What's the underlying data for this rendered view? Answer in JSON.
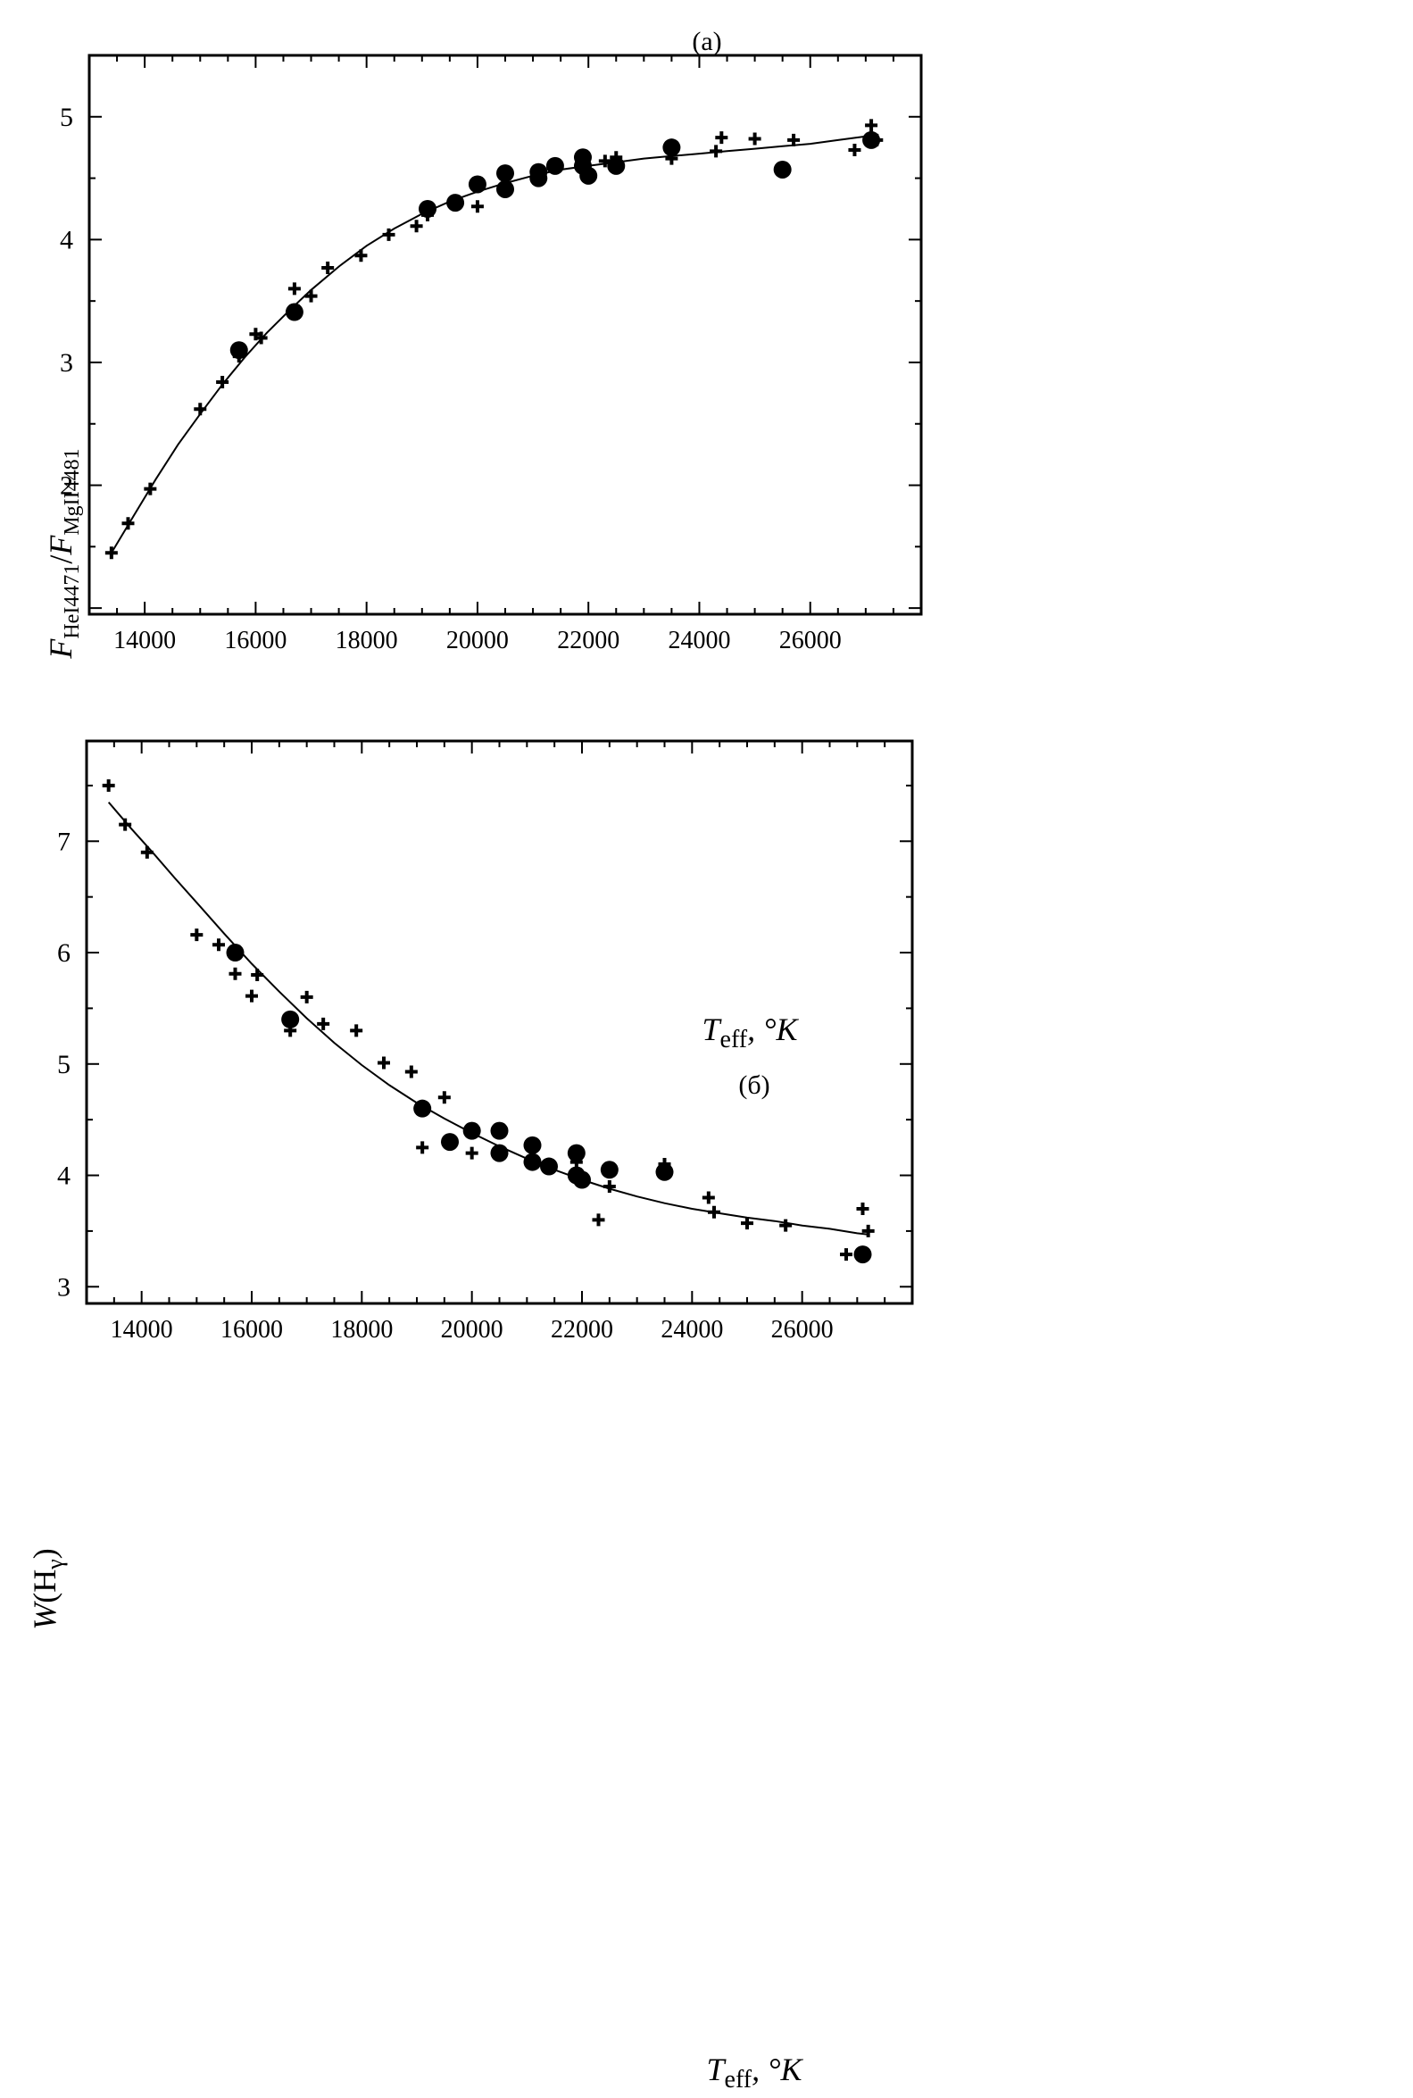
{
  "chart_data": [
    {
      "panel_label": "(a)",
      "type": "scatter",
      "xlabel": {
        "main": "T",
        "sub": "eff",
        "suffix": ", °K"
      },
      "ylabel": {
        "p1": "F",
        "s1": "HeI4471",
        "p2": "/",
        "p3": "F",
        "s2": "MgII4481"
      },
      "xlim": [
        13000,
        28000
      ],
      "ylim": [
        0.95,
        5.5
      ],
      "xticks": [
        14000,
        16000,
        18000,
        20000,
        22000,
        24000,
        26000
      ],
      "yticks": [
        2,
        3,
        4,
        5
      ],
      "series": [
        {
          "name": "crosses",
          "marker": "plus",
          "points": [
            [
              13400,
              1.45
            ],
            [
              13700,
              1.69
            ],
            [
              14100,
              1.97
            ],
            [
              15000,
              2.62
            ],
            [
              15400,
              2.84
            ],
            [
              15700,
              3.05
            ],
            [
              16000,
              3.23
            ],
            [
              16100,
              3.2
            ],
            [
              16700,
              3.6
            ],
            [
              17000,
              3.54
            ],
            [
              17300,
              3.77
            ],
            [
              17900,
              3.87
            ],
            [
              18400,
              4.04
            ],
            [
              18900,
              4.11
            ],
            [
              19100,
              4.2
            ],
            [
              19600,
              4.3
            ],
            [
              20000,
              4.27
            ],
            [
              21900,
              4.57
            ],
            [
              22300,
              4.64
            ],
            [
              22500,
              4.67
            ],
            [
              23500,
              4.66
            ],
            [
              24300,
              4.72
            ],
            [
              24400,
              4.83
            ],
            [
              25000,
              4.82
            ],
            [
              25700,
              4.81
            ],
            [
              26800,
              4.73
            ],
            [
              27100,
              4.93
            ],
            [
              27200,
              4.81
            ]
          ]
        },
        {
          "name": "circles",
          "marker": "circle",
          "points": [
            [
              15700,
              3.1
            ],
            [
              16700,
              3.41
            ],
            [
              19100,
              4.25
            ],
            [
              19600,
              4.3
            ],
            [
              20000,
              4.45
            ],
            [
              20500,
              4.54
            ],
            [
              20500,
              4.41
            ],
            [
              21100,
              4.55
            ],
            [
              21100,
              4.5
            ],
            [
              21400,
              4.6
            ],
            [
              21900,
              4.67
            ],
            [
              21900,
              4.6
            ],
            [
              22000,
              4.52
            ],
            [
              22500,
              4.6
            ],
            [
              23500,
              4.75
            ],
            [
              25500,
              4.57
            ],
            [
              27100,
              4.81
            ]
          ]
        }
      ],
      "fit_curve": [
        [
          13400,
          1.45
        ],
        [
          13800,
          1.75
        ],
        [
          14200,
          2.05
        ],
        [
          14600,
          2.33
        ],
        [
          15000,
          2.58
        ],
        [
          15400,
          2.82
        ],
        [
          15800,
          3.04
        ],
        [
          16200,
          3.24
        ],
        [
          16600,
          3.42
        ],
        [
          17000,
          3.59
        ],
        [
          17500,
          3.78
        ],
        [
          18000,
          3.95
        ],
        [
          18500,
          4.09
        ],
        [
          19000,
          4.21
        ],
        [
          19500,
          4.31
        ],
        [
          20000,
          4.39
        ],
        [
          20500,
          4.46
        ],
        [
          21000,
          4.52
        ],
        [
          21500,
          4.57
        ],
        [
          22000,
          4.6
        ],
        [
          22500,
          4.63
        ],
        [
          23000,
          4.66
        ],
        [
          23500,
          4.68
        ],
        [
          24000,
          4.7
        ],
        [
          24500,
          4.72
        ],
        [
          25000,
          4.74
        ],
        [
          25500,
          4.76
        ],
        [
          26000,
          4.78
        ],
        [
          26500,
          4.81
        ],
        [
          27000,
          4.84
        ],
        [
          27200,
          4.86
        ]
      ]
    },
    {
      "panel_label": "(б)",
      "type": "scatter",
      "xlabel": {
        "main": "T",
        "sub": "eff",
        "suffix": ", °K"
      },
      "ylabel": {
        "p1": "W",
        "p2": "(H",
        "s1": "γ",
        "p3": ")"
      },
      "xlim": [
        13000,
        28000
      ],
      "ylim": [
        2.85,
        7.9
      ],
      "xticks": [
        14000,
        16000,
        18000,
        20000,
        22000,
        24000,
        26000
      ],
      "yticks": [
        3,
        4,
        5,
        6,
        7
      ],
      "series": [
        {
          "name": "crosses",
          "marker": "plus",
          "points": [
            [
              13400,
              7.5
            ],
            [
              13700,
              7.15
            ],
            [
              14100,
              6.9
            ],
            [
              15000,
              6.16
            ],
            [
              15400,
              6.07
            ],
            [
              15700,
              5.81
            ],
            [
              16000,
              5.61
            ],
            [
              16100,
              5.8
            ],
            [
              16700,
              5.3
            ],
            [
              17000,
              5.6
            ],
            [
              17300,
              5.36
            ],
            [
              17900,
              5.3
            ],
            [
              18400,
              5.01
            ],
            [
              18900,
              4.93
            ],
            [
              19100,
              4.25
            ],
            [
              19500,
              4.7
            ],
            [
              20000,
              4.2
            ],
            [
              21900,
              4.12
            ],
            [
              22300,
              3.6
            ],
            [
              22500,
              3.9
            ],
            [
              23500,
              4.1
            ],
            [
              24300,
              3.8
            ],
            [
              24400,
              3.67
            ],
            [
              25000,
              3.57
            ],
            [
              25700,
              3.55
            ],
            [
              26800,
              3.29
            ],
            [
              27100,
              3.7
            ],
            [
              27200,
              3.5
            ]
          ]
        },
        {
          "name": "circles",
          "marker": "circle",
          "points": [
            [
              15700,
              6.0
            ],
            [
              16700,
              5.4
            ],
            [
              19100,
              4.6
            ],
            [
              19600,
              4.3
            ],
            [
              20000,
              4.4
            ],
            [
              20500,
              4.4
            ],
            [
              20500,
              4.2
            ],
            [
              21100,
              4.27
            ],
            [
              21100,
              4.12
            ],
            [
              21400,
              4.08
            ],
            [
              21900,
              4.2
            ],
            [
              21900,
              4.0
            ],
            [
              22000,
              3.96
            ],
            [
              22500,
              4.05
            ],
            [
              23500,
              4.03
            ],
            [
              27100,
              3.29
            ]
          ]
        }
      ],
      "fit_curve": [
        [
          13400,
          7.35
        ],
        [
          13800,
          7.12
        ],
        [
          14200,
          6.9
        ],
        [
          14600,
          6.67
        ],
        [
          15000,
          6.45
        ],
        [
          15500,
          6.17
        ],
        [
          16000,
          5.9
        ],
        [
          16500,
          5.65
        ],
        [
          17000,
          5.41
        ],
        [
          17500,
          5.19
        ],
        [
          18000,
          4.99
        ],
        [
          18500,
          4.81
        ],
        [
          19000,
          4.65
        ],
        [
          19500,
          4.51
        ],
        [
          20000,
          4.38
        ],
        [
          20500,
          4.26
        ],
        [
          21000,
          4.15
        ],
        [
          21500,
          4.05
        ],
        [
          22000,
          3.96
        ],
        [
          22500,
          3.88
        ],
        [
          23000,
          3.81
        ],
        [
          23500,
          3.75
        ],
        [
          24000,
          3.7
        ],
        [
          24500,
          3.66
        ],
        [
          25000,
          3.62
        ],
        [
          25500,
          3.59
        ],
        [
          26000,
          3.55
        ],
        [
          26500,
          3.52
        ],
        [
          27000,
          3.48
        ],
        [
          27200,
          3.47
        ]
      ]
    }
  ]
}
